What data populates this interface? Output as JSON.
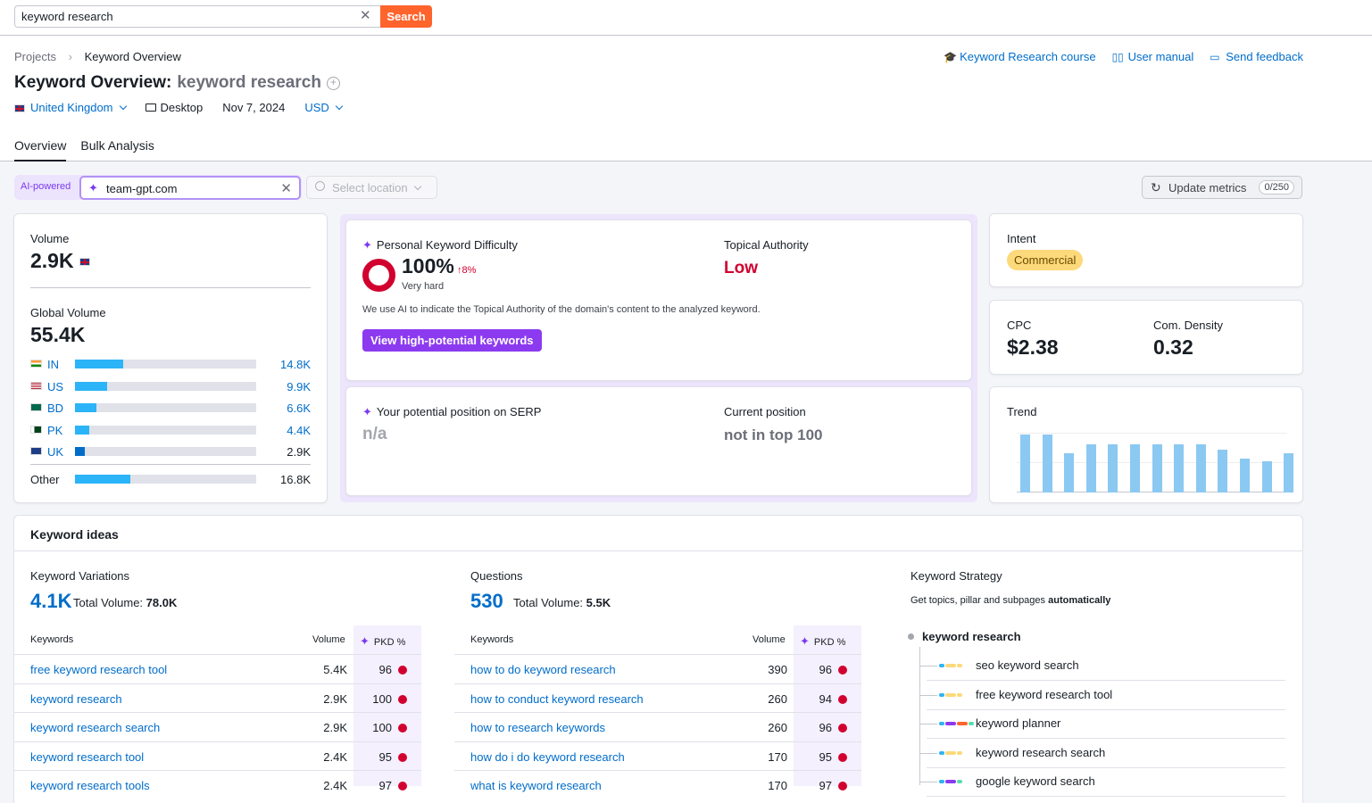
{
  "search": {
    "value": "keyword research",
    "button": "Search"
  },
  "breadcrumb": {
    "root": "Projects",
    "current": "Keyword Overview"
  },
  "toplinks": {
    "course": "Keyword Research course",
    "manual": "User manual",
    "feedback": "Send feedback"
  },
  "title": {
    "prefix": "Keyword Overview:",
    "keyword": "keyword research"
  },
  "meta": {
    "country": "United Kingdom",
    "device": "Desktop",
    "date": "Nov 7, 2024",
    "currency": "USD"
  },
  "tabs": [
    "Overview",
    "Bulk Analysis"
  ],
  "filters": {
    "ai_label": "AI-powered",
    "domain": "team-gpt.com",
    "location_placeholder": "Select location",
    "update_label": "Update metrics",
    "update_count": "0/250"
  },
  "volume": {
    "label": "Volume",
    "value": "2.9K"
  },
  "global_volume": {
    "label": "Global Volume",
    "value": "55.4K",
    "countries": [
      {
        "code": "IN",
        "value": "14.8K",
        "share": 0.268,
        "link": true
      },
      {
        "code": "US",
        "value": "9.9K",
        "share": 0.179,
        "link": true
      },
      {
        "code": "BD",
        "value": "6.6K",
        "share": 0.119,
        "link": true
      },
      {
        "code": "PK",
        "value": "4.4K",
        "share": 0.079,
        "link": true
      },
      {
        "code": "UK",
        "value": "2.9K",
        "share": 0.052,
        "link": false
      }
    ],
    "other": {
      "label": "Other",
      "value": "16.8K",
      "share": 0.303
    }
  },
  "pkd": {
    "label": "Personal Keyword Difficulty",
    "value": "100%",
    "change": "↑8%",
    "level": "Very hard",
    "topical_label": "Topical Authority",
    "topical_value": "Low",
    "note": "We use AI to indicate the Topical Authority of the domain's content to the analyzed keyword.",
    "button": "View high-potential keywords"
  },
  "serp": {
    "label": "Your potential position on SERP",
    "value": "n/a",
    "current_label": "Current position",
    "current_value": "not in top 100"
  },
  "intent": {
    "label": "Intent",
    "value": "Commercial"
  },
  "cpc": {
    "label": "CPC",
    "value": "$2.38",
    "density_label": "Com. Density",
    "density_value": "0.32"
  },
  "trend": {
    "label": "Trend",
    "values": [
      0.97,
      0.97,
      0.65,
      0.8,
      0.8,
      0.8,
      0.8,
      0.8,
      0.8,
      0.72,
      0.57,
      0.52,
      0.65
    ]
  },
  "ideas": {
    "title": "Keyword ideas",
    "variations": {
      "label": "Keyword Variations",
      "count": "4.1K",
      "total_label": "Total Volume:",
      "total": "78.0K",
      "col_kw": "Keywords",
      "col_vol": "Volume",
      "col_pkd": "PKD %",
      "rows": [
        {
          "kw": "free keyword research tool",
          "vol": "5.4K",
          "pkd": "96"
        },
        {
          "kw": "keyword research",
          "vol": "2.9K",
          "pkd": "100"
        },
        {
          "kw": "keyword research search",
          "vol": "2.9K",
          "pkd": "100"
        },
        {
          "kw": "keyword research tool",
          "vol": "2.4K",
          "pkd": "95"
        },
        {
          "kw": "keyword research tools",
          "vol": "2.4K",
          "pkd": "97"
        }
      ]
    },
    "questions": {
      "label": "Questions",
      "count": "530",
      "total_label": "Total Volume:",
      "total": "5.5K",
      "col_kw": "Keywords",
      "col_vol": "Volume",
      "col_pkd": "PKD %",
      "rows": [
        {
          "kw": "how to do keyword research",
          "vol": "390",
          "pkd": "96"
        },
        {
          "kw": "how to conduct keyword research",
          "vol": "260",
          "pkd": "94"
        },
        {
          "kw": "how to research keywords",
          "vol": "260",
          "pkd": "96"
        },
        {
          "kw": "how do i do keyword research",
          "vol": "170",
          "pkd": "95"
        },
        {
          "kw": "what is keyword research",
          "vol": "170",
          "pkd": "97"
        }
      ]
    },
    "strategy": {
      "label": "Keyword Strategy",
      "desc": "Get topics, pillar and subpages",
      "desc_bold": "automatically",
      "root": "keyword research",
      "items": [
        "seo keyword search",
        "free keyword research tool",
        "keyword planner",
        "keyword research search",
        "google keyword search"
      ]
    }
  }
}
